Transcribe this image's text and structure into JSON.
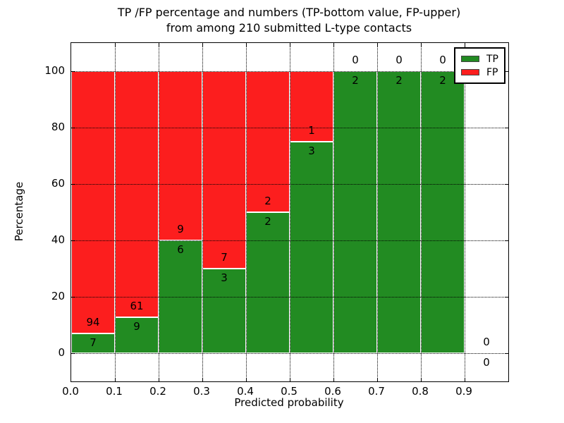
{
  "chart_data": {
    "type": "bar",
    "subtype": "stacked-percentage-histogram",
    "title_line1": "TP /FP percentage and numbers (TP-bottom value, FP-upper)",
    "title_line2": "from among 210 submitted L-type contacts",
    "xlabel": "Predicted probability",
    "ylabel": "Percentage",
    "total_contacts": 210,
    "xlim": [
      0.0,
      1.0
    ],
    "ylim": [
      -10,
      110
    ],
    "grid": "dotted",
    "x_tick_labels": [
      "0.0",
      "0.1",
      "0.2",
      "0.3",
      "0.4",
      "0.5",
      "0.6",
      "0.7",
      "0.8",
      "0.9"
    ],
    "y_tick_labels": [
      "0",
      "20",
      "40",
      "60",
      "80",
      "100"
    ],
    "y_tick_values": [
      0,
      20,
      40,
      60,
      80,
      100
    ],
    "colors": {
      "tp": "#228b22",
      "fp": "#fc1e1e",
      "grid": "#000000",
      "text": "#000000",
      "background": "#ffffff",
      "bar_edge": "#ffffff"
    },
    "legend": {
      "position": "upper-right",
      "entries": [
        {
          "label": "TP",
          "color": "#228b22"
        },
        {
          "label": "FP",
          "color": "#fc1e1e"
        }
      ]
    },
    "bins": [
      {
        "range": "0.0-0.1",
        "tp": 7,
        "fp": 94,
        "tp_pct": 6.93
      },
      {
        "range": "0.1-0.2",
        "tp": 9,
        "fp": 61,
        "tp_pct": 12.86
      },
      {
        "range": "0.2-0.3",
        "tp": 6,
        "fp": 9,
        "tp_pct": 40.0
      },
      {
        "range": "0.3-0.4",
        "tp": 3,
        "fp": 7,
        "tp_pct": 30.0
      },
      {
        "range": "0.4-0.5",
        "tp": 2,
        "fp": 2,
        "tp_pct": 50.0
      },
      {
        "range": "0.5-0.6",
        "tp": 3,
        "fp": 1,
        "tp_pct": 75.0
      },
      {
        "range": "0.6-0.7",
        "tp": 2,
        "fp": 0,
        "tp_pct": 100.0
      },
      {
        "range": "0.7-0.8",
        "tp": 2,
        "fp": 0,
        "tp_pct": 100.0
      },
      {
        "range": "0.8-0.9",
        "tp": 2,
        "fp": 0,
        "tp_pct": 100.0
      },
      {
        "range": "0.9-1.0",
        "tp": 0,
        "fp": 0,
        "tp_pct": 0.0
      }
    ]
  }
}
